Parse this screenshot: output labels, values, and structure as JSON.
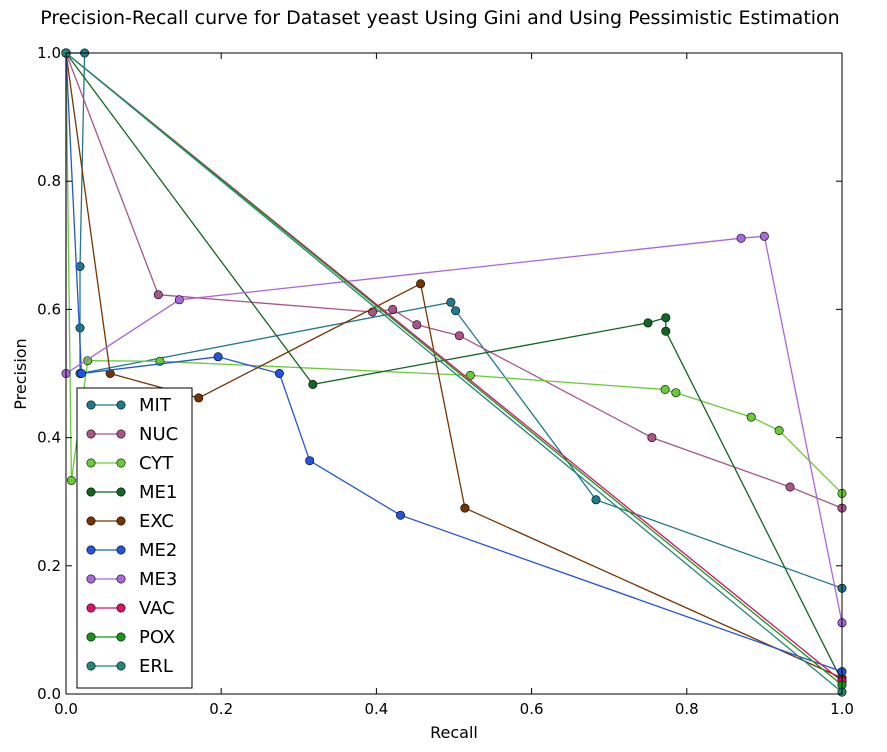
{
  "chart_data": {
    "type": "line",
    "title": "Precision-Recall curve for Dataset yeast Using Gini and Using Pessimistic Estimation",
    "xlabel": "Recall",
    "ylabel": "Precision",
    "xlim": [
      0.0,
      1.0
    ],
    "ylim": [
      0.0,
      1.0
    ],
    "xticks": [
      "0.0",
      "0.2",
      "0.4",
      "0.6",
      "0.8",
      "1.0"
    ],
    "yticks": [
      "0.0",
      "0.2",
      "0.4",
      "0.6",
      "0.8",
      "1.0"
    ],
    "grid": false,
    "legend_position": "bottom-left",
    "series": [
      {
        "name": "MIT",
        "color": "#1f7a8c",
        "points": [
          [
            0.0,
            1.0
          ],
          [
            0.024,
            1.0
          ],
          [
            0.018,
            0.667
          ],
          [
            0.018,
            0.571
          ],
          [
            0.018,
            0.5
          ],
          [
            0.496,
            0.611
          ],
          [
            0.502,
            0.598
          ],
          [
            0.683,
            0.303
          ],
          [
            1.0,
            0.165
          ]
        ]
      },
      {
        "name": "NUC",
        "color": "#aa5588",
        "points": [
          [
            0.0,
            1.0
          ],
          [
            0.119,
            0.623
          ],
          [
            0.395,
            0.596
          ],
          [
            0.421,
            0.6
          ],
          [
            0.452,
            0.576
          ],
          [
            0.507,
            0.559
          ],
          [
            0.755,
            0.4
          ],
          [
            0.933,
            0.323
          ],
          [
            1.0,
            0.29
          ]
        ]
      },
      {
        "name": "CYT",
        "color": "#66cc33",
        "points": [
          [
            0.0,
            1.0
          ],
          [
            0.007,
            0.333
          ],
          [
            0.028,
            0.52
          ],
          [
            0.121,
            0.519
          ],
          [
            0.521,
            0.497
          ],
          [
            0.772,
            0.475
          ],
          [
            0.786,
            0.47
          ],
          [
            0.883,
            0.432
          ],
          [
            0.919,
            0.411
          ],
          [
            1.0,
            0.313
          ]
        ]
      },
      {
        "name": "ME1",
        "color": "#116622",
        "points": [
          [
            0.0,
            1.0
          ],
          [
            0.318,
            0.483
          ],
          [
            0.75,
            0.579
          ],
          [
            0.773,
            0.587
          ],
          [
            0.773,
            0.566
          ],
          [
            1.0,
            0.02
          ]
        ]
      },
      {
        "name": "EXC",
        "color": "#773300",
        "points": [
          [
            0.0,
            1.0
          ],
          [
            0.057,
            0.5
          ],
          [
            0.171,
            0.462
          ],
          [
            0.457,
            0.64
          ],
          [
            0.514,
            0.29
          ],
          [
            1.0,
            0.025
          ]
        ]
      },
      {
        "name": "ME2",
        "color": "#2255dd",
        "points": [
          [
            0.0,
            1.0
          ],
          [
            0.02,
            0.5
          ],
          [
            0.196,
            0.526
          ],
          [
            0.275,
            0.5
          ],
          [
            0.314,
            0.364
          ],
          [
            0.431,
            0.279
          ],
          [
            1.0,
            0.035
          ]
        ]
      },
      {
        "name": "ME3",
        "color": "#aa66dd",
        "points": [
          [
            0.0,
            1.0
          ],
          [
            0.0,
            0.5
          ],
          [
            0.146,
            0.615
          ],
          [
            0.87,
            0.711
          ],
          [
            0.9,
            0.714
          ],
          [
            1.0,
            0.111
          ]
        ]
      },
      {
        "name": "VAC",
        "color": "#dd1166",
        "points": [
          [
            0.0,
            1.0
          ],
          [
            1.0,
            0.02
          ]
        ]
      },
      {
        "name": "POX",
        "color": "#119911",
        "points": [
          [
            0.0,
            1.0
          ],
          [
            1.0,
            0.014
          ]
        ]
      },
      {
        "name": "ERL",
        "color": "#228877",
        "points": [
          [
            0.0,
            1.0
          ],
          [
            1.0,
            0.003
          ]
        ]
      }
    ]
  }
}
